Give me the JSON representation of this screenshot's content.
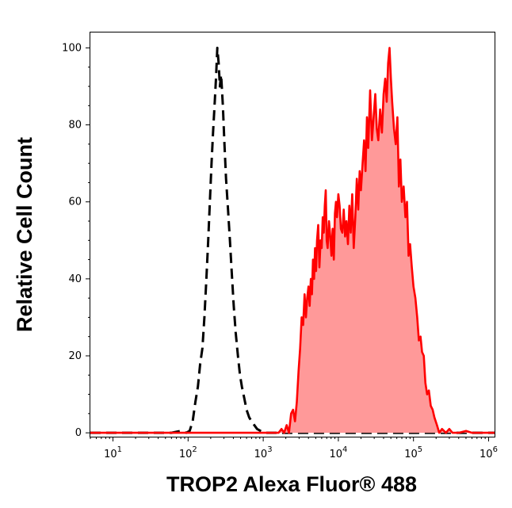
{
  "chart_data": {
    "type": "area",
    "xlabel": "TROP2 Alexa Fluor® 488",
    "ylabel": "Relative Cell Count",
    "x_scale": "log10",
    "xlim": [
      5,
      1200000
    ],
    "ylim": [
      -1,
      104
    ],
    "x_ticks": [
      {
        "value": 10,
        "base": "10",
        "exp": "1"
      },
      {
        "value": 100,
        "base": "10",
        "exp": "2"
      },
      {
        "value": 1000,
        "base": "10",
        "exp": "3"
      },
      {
        "value": 10000,
        "base": "10",
        "exp": "4"
      },
      {
        "value": 100000,
        "base": "10",
        "exp": "5"
      },
      {
        "value": 1000000,
        "base": "10",
        "exp": "6"
      }
    ],
    "y_ticks": [
      0,
      20,
      40,
      60,
      80,
      100
    ],
    "grid": false,
    "series": [
      {
        "style": "dashed",
        "color": "#000000",
        "points": [
          [
            5,
            0
          ],
          [
            60,
            0
          ],
          [
            80,
            0.5
          ],
          [
            95,
            0
          ],
          [
            105,
            0.5
          ],
          [
            115,
            3
          ],
          [
            125,
            8
          ],
          [
            135,
            12
          ],
          [
            145,
            18
          ],
          [
            155,
            22
          ],
          [
            165,
            30
          ],
          [
            175,
            40
          ],
          [
            185,
            50
          ],
          [
            195,
            60
          ],
          [
            205,
            70
          ],
          [
            215,
            78
          ],
          [
            225,
            85
          ],
          [
            235,
            92
          ],
          [
            245,
            100
          ],
          [
            255,
            96
          ],
          [
            265,
            90
          ],
          [
            275,
            93
          ],
          [
            290,
            85
          ],
          [
            305,
            75
          ],
          [
            320,
            66
          ],
          [
            340,
            58
          ],
          [
            360,
            50
          ],
          [
            380,
            42
          ],
          [
            405,
            33
          ],
          [
            430,
            26
          ],
          [
            460,
            20
          ],
          [
            490,
            15
          ],
          [
            520,
            12
          ],
          [
            560,
            9
          ],
          [
            600,
            6
          ],
          [
            650,
            4
          ],
          [
            700,
            3
          ],
          [
            760,
            2
          ],
          [
            830,
            1
          ],
          [
            920,
            0.5
          ],
          [
            1050,
            0
          ],
          [
            1200000,
            0
          ]
        ]
      },
      {
        "style": "filled",
        "color": "#ff0000",
        "fill": "#ff9999",
        "points": [
          [
            5,
            0
          ],
          [
            1600,
            0
          ],
          [
            1750,
            1
          ],
          [
            1900,
            0
          ],
          [
            2050,
            2
          ],
          [
            2200,
            0
          ],
          [
            2350,
            5
          ],
          [
            2500,
            6
          ],
          [
            2650,
            3
          ],
          [
            2800,
            8
          ],
          [
            2950,
            16
          ],
          [
            3100,
            22
          ],
          [
            3250,
            30
          ],
          [
            3400,
            28
          ],
          [
            3550,
            36
          ],
          [
            3700,
            30
          ],
          [
            3850,
            35
          ],
          [
            4000,
            38
          ],
          [
            4150,
            33
          ],
          [
            4300,
            40
          ],
          [
            4450,
            36
          ],
          [
            4600,
            45
          ],
          [
            4750,
            40
          ],
          [
            4900,
            48
          ],
          [
            5050,
            42
          ],
          [
            5200,
            50
          ],
          [
            5400,
            54
          ],
          [
            5600,
            43
          ],
          [
            5800,
            50
          ],
          [
            6000,
            48
          ],
          [
            6200,
            56
          ],
          [
            6400,
            52
          ],
          [
            6600,
            59
          ],
          [
            6800,
            63
          ],
          [
            7000,
            50
          ],
          [
            7200,
            48
          ],
          [
            7500,
            55
          ],
          [
            7800,
            51
          ],
          [
            8100,
            46
          ],
          [
            8400,
            53
          ],
          [
            8700,
            45
          ],
          [
            9000,
            57
          ],
          [
            9300,
            60
          ],
          [
            9600,
            56
          ],
          [
            10000,
            62
          ],
          [
            10400,
            59
          ],
          [
            10800,
            53
          ],
          [
            11300,
            52
          ],
          [
            11800,
            58
          ],
          [
            12300,
            51
          ],
          [
            12800,
            55
          ],
          [
            13400,
            49
          ],
          [
            14000,
            59
          ],
          [
            14600,
            52
          ],
          [
            15300,
            62
          ],
          [
            16000,
            48
          ],
          [
            16800,
            56
          ],
          [
            17600,
            66
          ],
          [
            18400,
            58
          ],
          [
            19200,
            68
          ],
          [
            20000,
            63
          ],
          [
            21000,
            70
          ],
          [
            22000,
            76
          ],
          [
            23000,
            68
          ],
          [
            24000,
            82
          ],
          [
            25000,
            74
          ],
          [
            26500,
            89
          ],
          [
            28000,
            76
          ],
          [
            29500,
            82
          ],
          [
            31000,
            88
          ],
          [
            32500,
            79
          ],
          [
            34000,
            76
          ],
          [
            36000,
            84
          ],
          [
            38000,
            78
          ],
          [
            40000,
            88
          ],
          [
            42000,
            92
          ],
          [
            44000,
            86
          ],
          [
            46000,
            96
          ],
          [
            48000,
            100
          ],
          [
            50000,
            92
          ],
          [
            52000,
            86
          ],
          [
            55000,
            79
          ],
          [
            58000,
            75
          ],
          [
            61000,
            82
          ],
          [
            64000,
            64
          ],
          [
            67000,
            71
          ],
          [
            70000,
            60
          ],
          [
            74000,
            64
          ],
          [
            78000,
            56
          ],
          [
            82000,
            60
          ],
          [
            86000,
            46
          ],
          [
            90000,
            49
          ],
          [
            95000,
            43
          ],
          [
            100000,
            38
          ],
          [
            106000,
            35
          ],
          [
            112000,
            30
          ],
          [
            118000,
            24
          ],
          [
            124000,
            25
          ],
          [
            130000,
            21
          ],
          [
            137000,
            20
          ],
          [
            144000,
            13
          ],
          [
            152000,
            10
          ],
          [
            160000,
            11
          ],
          [
            170000,
            7
          ],
          [
            180000,
            6
          ],
          [
            190000,
            4
          ],
          [
            205000,
            2
          ],
          [
            220000,
            0
          ],
          [
            240000,
            1
          ],
          [
            270000,
            0
          ],
          [
            300000,
            1
          ],
          [
            330000,
            0
          ],
          [
            400000,
            0
          ],
          [
            500000,
            0.5
          ],
          [
            600000,
            0
          ],
          [
            1200000,
            0
          ]
        ]
      }
    ]
  }
}
